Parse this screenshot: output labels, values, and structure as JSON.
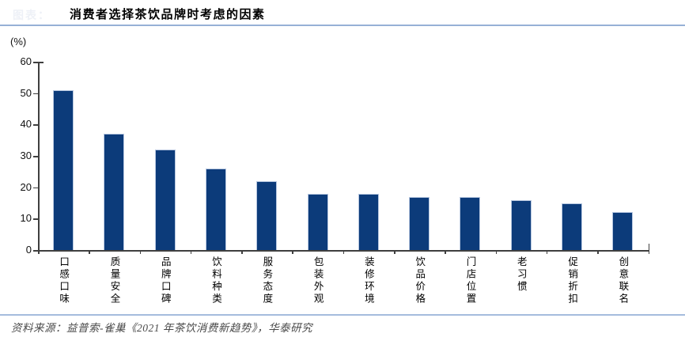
{
  "header": {
    "faint_label": "图表：",
    "title": "消费者选择茶饮品牌时考虑的因素"
  },
  "chart_data": {
    "type": "bar",
    "title": "消费者选择茶饮品牌时考虑的因素",
    "categories": [
      "口感口味",
      "质量安全",
      "品牌口碑",
      "饮料种类",
      "服务态度",
      "包装外观",
      "装修环境",
      "饮品价格",
      "门店位置",
      "老习惯",
      "促销折扣",
      "创意联名"
    ],
    "values": [
      51,
      37,
      32,
      26,
      22,
      18,
      18,
      17,
      17,
      16,
      15,
      12
    ],
    "xlabel": "",
    "ylabel": "(%)",
    "ylim": [
      0,
      60
    ],
    "ytick_step": 10,
    "yticks": [
      0,
      10,
      20,
      30,
      40,
      50,
      60
    ],
    "grid": false,
    "legend": "none",
    "bar_color": "#0c3b7a",
    "bar_edge_color": "#b7c7e0",
    "axis_color": "#3f3f3f"
  },
  "footer": {
    "source": "资料来源：益普索-雀巢《2021 年茶饮消费新趋势》，华泰研究"
  }
}
